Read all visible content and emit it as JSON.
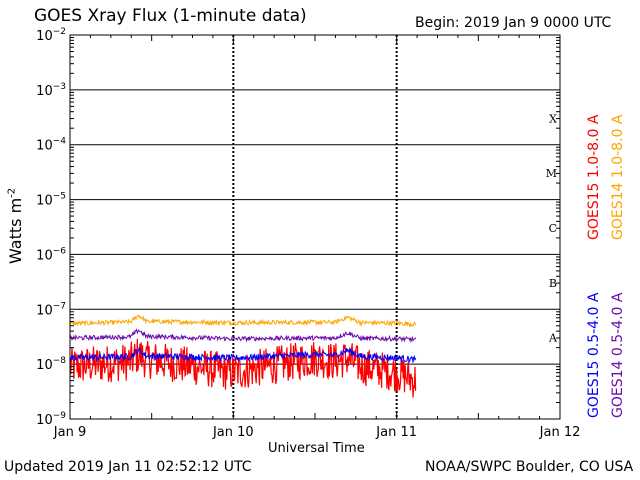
{
  "header": {
    "title": "GOES Xray Flux (1-minute data)",
    "begin": "Begin:  2019 Jan 9 0000 UTC"
  },
  "footer": {
    "updated": "Updated 2019 Jan 11 02:52:12 UTC",
    "credit": "NOAA/SWPC Boulder, CO USA"
  },
  "chart_data": {
    "type": "line",
    "title": "GOES Xray Flux (1-minute data)",
    "xlabel": "Universal Time",
    "ylabel": "Watts m-2",
    "yscale": "log",
    "ylim": [
      1e-09,
      0.01
    ],
    "xlim": [
      "Jan 9",
      "Jan 12"
    ],
    "x_ticks": [
      "Jan 9",
      "Jan 10",
      "Jan 11",
      "Jan 12"
    ],
    "y_ticks": [
      "10-9",
      "10-8",
      "10-7",
      "10-6",
      "10-5",
      "10-4",
      "10-3",
      "10-2"
    ],
    "flare_classes": [
      "A",
      "B",
      "C",
      "M",
      "X"
    ],
    "grid": true,
    "legend_position": "right, vertical",
    "series": [
      {
        "name": "GOES15 1.0-8.0 A",
        "color": "#ff0000",
        "x": [
          "Jan 9 00:00",
          "Jan 9 12:00",
          "Jan 10 00:00",
          "Jan 10 12:00",
          "Jan 11 00:00",
          "Jan 11 02:52"
        ],
        "values": [
          9e-09,
          1.2e-08,
          7e-09,
          1.3e-08,
          7e-09,
          5e-09
        ]
      },
      {
        "name": "GOES14 1.0-8.0 A",
        "color": "#ffa500",
        "x": [
          "Jan 9 00:00",
          "Jan 9 12:00",
          "Jan 10 00:00",
          "Jan 10 12:00",
          "Jan 11 00:00",
          "Jan 11 02:52"
        ],
        "values": [
          5.5e-08,
          6e-08,
          5.7e-08,
          5.8e-08,
          5.6e-08,
          5.3e-08
        ]
      },
      {
        "name": "GOES15 0.5-4.0 A",
        "color": "#0000ff",
        "x": [
          "Jan 9 00:00",
          "Jan 9 12:00",
          "Jan 10 00:00",
          "Jan 10 12:00",
          "Jan 11 00:00",
          "Jan 11 02:52"
        ],
        "values": [
          1.3e-08,
          1.4e-08,
          1.3e-08,
          1.5e-08,
          1.3e-08,
          1.2e-08
        ]
      },
      {
        "name": "GOES14 0.5-4.0 A",
        "color": "#6a0dad",
        "x": [
          "Jan 9 00:00",
          "Jan 9 12:00",
          "Jan 10 00:00",
          "Jan 10 12:00",
          "Jan 11 00:00",
          "Jan 11 02:52"
        ],
        "values": [
          3e-08,
          3.2e-08,
          2.9e-08,
          3e-08,
          2.9e-08,
          2.8e-08
        ]
      }
    ]
  }
}
